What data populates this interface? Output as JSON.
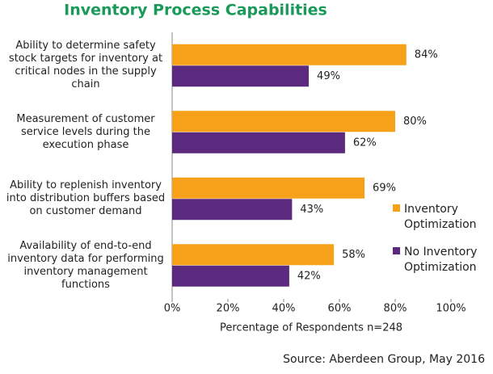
{
  "chart_data": {
    "type": "bar",
    "orientation": "horizontal",
    "title": "Inventory Process Capabilities",
    "categories": [
      "Ability to determine safety stock targets for inventory at critical nodes in the supply chain",
      "Measurement of customer service levels during the execution phase",
      "Ability to replenish inventory into distribution buffers based on customer demand",
      "Availability of end-to-end inventory data for performing inventory management functions"
    ],
    "series": [
      {
        "name": "Inventory Optimization",
        "color": "#f7a11a",
        "values": [
          84,
          80,
          69,
          58
        ],
        "value_labels": [
          "84%",
          "80%",
          "69%",
          "58%"
        ]
      },
      {
        "name": "No Inventory Optimization",
        "color": "#5b2a7e",
        "values": [
          49,
          62,
          43,
          42
        ],
        "value_labels": [
          "49%",
          "62%",
          "43%",
          "42%"
        ]
      }
    ],
    "xlim": [
      0,
      100
    ],
    "xticks": [
      {
        "value": 0,
        "label": "0%"
      },
      {
        "value": 20,
        "label": "20%"
      },
      {
        "value": 40,
        "label": "40%"
      },
      {
        "value": 60,
        "label": "60%"
      },
      {
        "value": 80,
        "label": "80%"
      },
      {
        "value": 100,
        "label": "100%"
      }
    ],
    "xlabel": "Percentage of Respondents n=248",
    "source": "Source: Aberdeen Group, May 2016",
    "legend": "right"
  }
}
